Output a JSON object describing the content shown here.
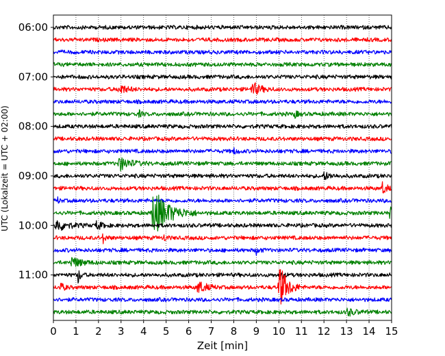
{
  "chart_data": {
    "type": "line",
    "chart_kind": "helicorder",
    "xlabel": "Zeit  [min]",
    "ylabel": "UTC (Lokalzeit = UTC + 02:00)",
    "xlim": [
      0,
      15
    ],
    "x_ticks": [
      0,
      1,
      2,
      3,
      4,
      5,
      6,
      7,
      8,
      9,
      10,
      11,
      12,
      13,
      14,
      15
    ],
    "y_tick_labels": [
      "06:00",
      "07:00",
      "08:00",
      "09:00",
      "10:00",
      "11:00"
    ],
    "trace_interval_min": 15,
    "trace_count": 24,
    "first_trace_time": "06:00",
    "last_trace_time": "11:45",
    "trace_color_cycle": [
      "#000000",
      "#ff0000",
      "#0000ff",
      "#008000"
    ],
    "grid": "vertical dotted lines at every minute",
    "legend": "none",
    "events": [
      {
        "trace": "07:15",
        "minute": 2.9,
        "amplitude": 0.45,
        "duration_min": 0.9
      },
      {
        "trace": "07:15",
        "minute": 8.8,
        "amplitude": 0.6,
        "duration_min": 1.0
      },
      {
        "trace": "07:45",
        "minute": 3.8,
        "amplitude": 0.25,
        "duration_min": 0.3
      },
      {
        "trace": "07:45",
        "minute": 10.7,
        "amplitude": 0.3,
        "duration_min": 0.4
      },
      {
        "trace": "08:30",
        "minute": 8.0,
        "amplitude": 0.2,
        "duration_min": 0.5
      },
      {
        "trace": "08:45",
        "minute": 2.9,
        "amplitude": 0.55,
        "duration_min": 1.4
      },
      {
        "trace": "09:00",
        "minute": 12.0,
        "amplitude": 0.3,
        "duration_min": 0.8
      },
      {
        "trace": "09:15",
        "minute": 14.6,
        "amplitude": 0.55,
        "duration_min": 0.5
      },
      {
        "trace": "09:30",
        "minute": 0.2,
        "amplitude": 0.25,
        "duration_min": 0.2
      },
      {
        "trace": "09:45",
        "minute": 4.4,
        "amplitude": 2.0,
        "duration_min": 2.0
      },
      {
        "trace": "09:45",
        "minute": 14.9,
        "amplitude": 0.55,
        "duration_min": 0.4
      },
      {
        "trace": "10:00",
        "minute": 0.1,
        "amplitude": 0.5,
        "duration_min": 1.4
      },
      {
        "trace": "10:00",
        "minute": 1.9,
        "amplitude": 0.35,
        "duration_min": 0.7
      },
      {
        "trace": "10:15",
        "minute": 2.2,
        "amplitude": 0.35,
        "duration_min": 0.4
      },
      {
        "trace": "10:15",
        "minute": 4.9,
        "amplitude": 0.3,
        "duration_min": 0.3
      },
      {
        "trace": "10:30",
        "minute": 9.0,
        "amplitude": 0.3,
        "duration_min": 0.4
      },
      {
        "trace": "10:45",
        "minute": 0.8,
        "amplitude": 0.45,
        "duration_min": 1.2
      },
      {
        "trace": "11:00",
        "minute": 1.1,
        "amplitude": 0.7,
        "duration_min": 0.3
      },
      {
        "trace": "11:00",
        "minute": 10.1,
        "amplitude": 0.45,
        "duration_min": 0.3
      },
      {
        "trace": "11:15",
        "minute": 0.3,
        "amplitude": 0.35,
        "duration_min": 0.5
      },
      {
        "trace": "11:15",
        "minute": 6.4,
        "amplitude": 0.55,
        "duration_min": 1.0
      },
      {
        "trace": "11:15",
        "minute": 10.0,
        "amplitude": 2.0,
        "duration_min": 1.0
      },
      {
        "trace": "11:45",
        "minute": 13.0,
        "amplitude": 0.3,
        "duration_min": 1.0
      }
    ]
  }
}
